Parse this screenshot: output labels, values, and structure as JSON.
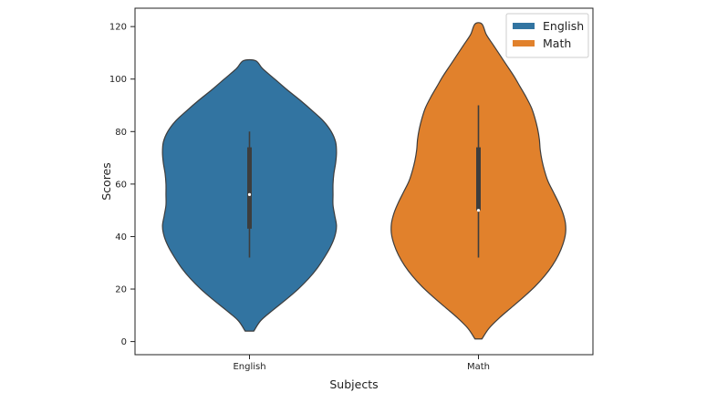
{
  "chart_data": {
    "type": "violin",
    "title": "",
    "xlabel": "Subjects",
    "ylabel": "Scores",
    "categories": [
      "English",
      "Math"
    ],
    "ylim": [
      -5,
      127
    ],
    "yticks": [
      0,
      20,
      40,
      60,
      80,
      100,
      120
    ],
    "grid": false,
    "legend": {
      "position": "top-right",
      "entries": [
        {
          "name": "English",
          "color": "#3274a1"
        },
        {
          "name": "Math",
          "color": "#e1812c"
        }
      ]
    },
    "series": [
      {
        "name": "English",
        "color": "#3274a1",
        "min": 32,
        "q1": 43,
        "median": 56,
        "q3": 74,
        "max": 80,
        "density_extent": [
          4,
          107
        ],
        "density": [
          [
            4,
            0.05
          ],
          [
            8,
            0.13
          ],
          [
            12,
            0.27
          ],
          [
            16,
            0.42
          ],
          [
            20,
            0.56
          ],
          [
            24,
            0.68
          ],
          [
            28,
            0.78
          ],
          [
            32,
            0.86
          ],
          [
            36,
            0.93
          ],
          [
            40,
            0.98
          ],
          [
            44,
            1.0
          ],
          [
            48,
            0.98
          ],
          [
            52,
            0.96
          ],
          [
            56,
            0.96
          ],
          [
            60,
            0.96
          ],
          [
            64,
            0.97
          ],
          [
            68,
            0.99
          ],
          [
            72,
            1.0
          ],
          [
            76,
            0.99
          ],
          [
            80,
            0.94
          ],
          [
            84,
            0.85
          ],
          [
            88,
            0.72
          ],
          [
            92,
            0.58
          ],
          [
            96,
            0.43
          ],
          [
            100,
            0.29
          ],
          [
            104,
            0.15
          ],
          [
            107,
            0.07
          ]
        ]
      },
      {
        "name": "Math",
        "color": "#e1812c",
        "min": 32,
        "q1": 50,
        "median": 50,
        "q3": 74,
        "max": 90,
        "density_extent": [
          1,
          121
        ],
        "density": [
          [
            1,
            0.04
          ],
          [
            5,
            0.12
          ],
          [
            9,
            0.24
          ],
          [
            13,
            0.38
          ],
          [
            17,
            0.52
          ],
          [
            21,
            0.65
          ],
          [
            25,
            0.76
          ],
          [
            29,
            0.85
          ],
          [
            33,
            0.92
          ],
          [
            37,
            0.97
          ],
          [
            41,
            1.0
          ],
          [
            45,
            1.0
          ],
          [
            49,
            0.97
          ],
          [
            53,
            0.92
          ],
          [
            57,
            0.86
          ],
          [
            61,
            0.8
          ],
          [
            65,
            0.76
          ],
          [
            69,
            0.73
          ],
          [
            73,
            0.71
          ],
          [
            77,
            0.7
          ],
          [
            81,
            0.68
          ],
          [
            85,
            0.65
          ],
          [
            89,
            0.61
          ],
          [
            93,
            0.55
          ],
          [
            97,
            0.48
          ],
          [
            101,
            0.41
          ],
          [
            105,
            0.33
          ],
          [
            109,
            0.25
          ],
          [
            113,
            0.17
          ],
          [
            117,
            0.09
          ],
          [
            121,
            0.04
          ]
        ]
      }
    ]
  }
}
